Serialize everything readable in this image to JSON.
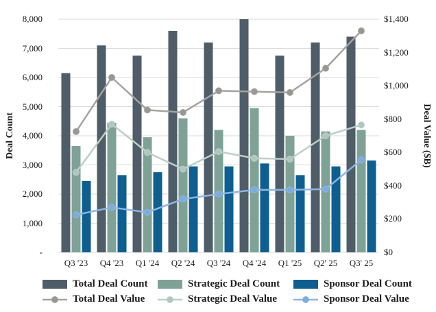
{
  "chart_data": {
    "type": "combo-bar-line",
    "title": "",
    "categories": [
      "Q3 '23",
      "Q4 '23",
      "Q1 '24",
      "Q2 '24",
      "Q3 '24",
      "Q4 '24",
      "Q1 '25",
      "Q2' 25",
      "Q3' 25"
    ],
    "bar_series": [
      {
        "name": "Total Deal Count",
        "axis": "left",
        "color": "#4e5d67",
        "values": [
          6150,
          7100,
          6750,
          7600,
          7200,
          8000,
          6750,
          7200,
          7400
        ]
      },
      {
        "name": "Strategic Deal Count",
        "axis": "left",
        "color": "#7fa296",
        "values": [
          3650,
          4450,
          3950,
          4600,
          4200,
          4950,
          4000,
          4150,
          4200
        ]
      },
      {
        "name": "Sponsor Deal Count",
        "axis": "left",
        "color": "#0e5f90",
        "values": [
          2450,
          2650,
          2750,
          2950,
          2950,
          3050,
          2650,
          2950,
          3150
        ]
      }
    ],
    "line_series": [
      {
        "name": "Total Deal Value",
        "axis": "right",
        "color": "#a5a3a0",
        "marker_color": "#999794",
        "values": [
          725,
          1050,
          855,
          840,
          970,
          965,
          960,
          1105,
          1330
        ]
      },
      {
        "name": "Strategic Deal Value",
        "axis": "right",
        "color": "#bccfc7",
        "marker_color": "#afc7be",
        "values": [
          480,
          770,
          600,
          500,
          605,
          565,
          560,
          700,
          765
        ]
      },
      {
        "name": "Sponsor Deal Value",
        "axis": "right",
        "color": "#8db6e4",
        "marker_color": "#7cacdf",
        "values": [
          225,
          270,
          240,
          320,
          350,
          375,
          375,
          380,
          555
        ]
      }
    ],
    "left_axis": {
      "title": "Deal Count",
      "min": 0,
      "max": 8000,
      "tick_values": [
        0,
        1000,
        2000,
        3000,
        4000,
        5000,
        6000,
        7000,
        8000
      ],
      "tick_labels": [
        "-",
        "1,000",
        "2,000",
        "3,000",
        "4,000",
        "5,000",
        "6,000",
        "7,000",
        "8,000"
      ]
    },
    "right_axis": {
      "title": "Deal Value ($B)",
      "min": 0,
      "max": 1400,
      "tick_values": [
        0,
        200,
        400,
        600,
        800,
        1000,
        1200,
        1400
      ],
      "tick_labels": [
        "$0",
        "$200",
        "$400",
        "$600",
        "$800",
        "$1,000",
        "$1,200",
        "$1,400"
      ]
    },
    "grid": "horizontal",
    "grid_color": "#d9d9d9",
    "legend_position": "bottom"
  }
}
